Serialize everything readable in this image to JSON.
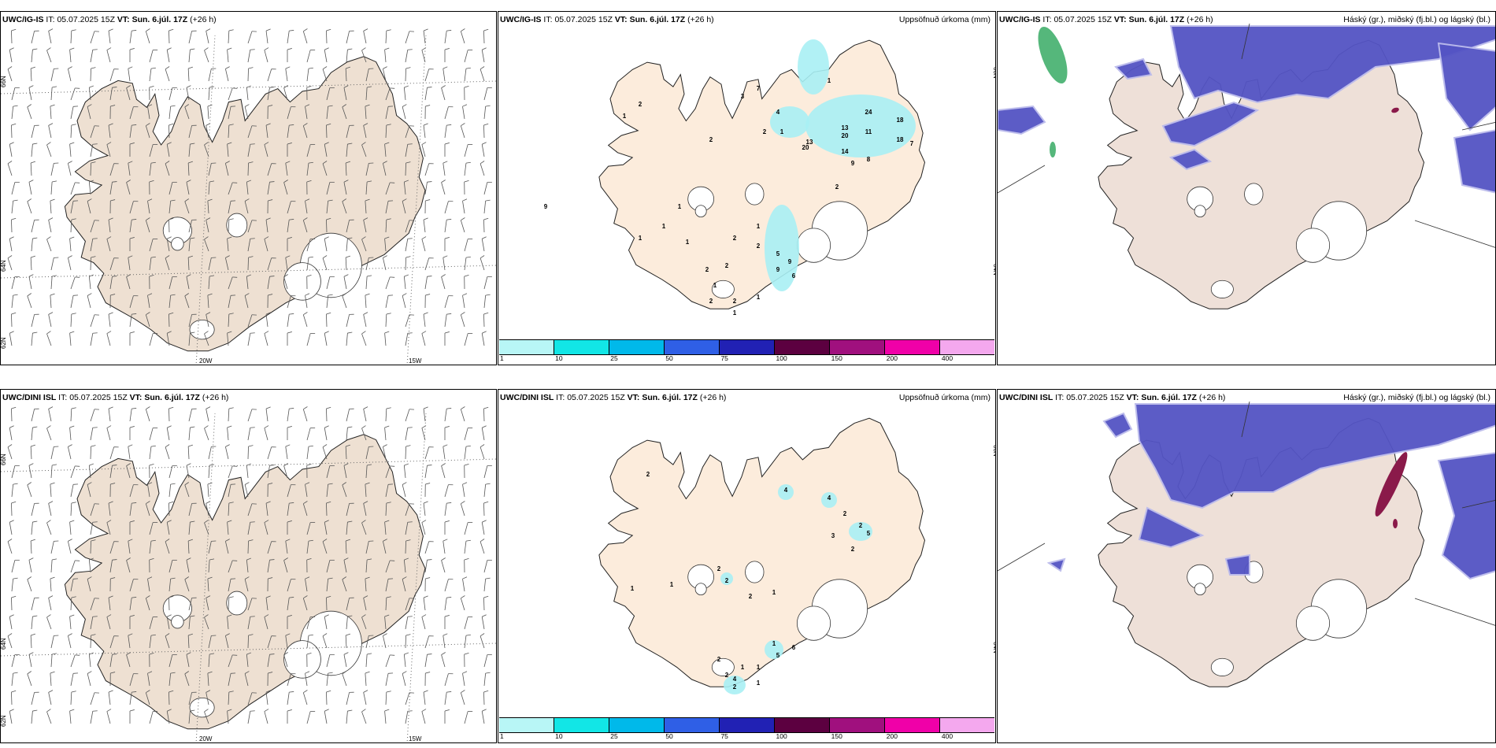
{
  "header": {
    "it_label": "IT:",
    "it_value": "05.07.2025 15Z",
    "vt_label": "VT: Sun. 6.júl. 17Z",
    "lead": "(+26 h)"
  },
  "rows": [
    {
      "model": "UWC/IG-IS"
    },
    {
      "model": "UWC/DINI ISL"
    }
  ],
  "panels": {
    "precip_title": "Uppsöfnuð úrkoma (mm)",
    "cloud_title": "Háský (gr.), miðský (fj.bl.) og lágský (bl.)"
  },
  "axis_labels": {
    "lat_66": "66N",
    "lat_64": "64N",
    "lat_62": "62N",
    "lon_20w": "20W",
    "lon_15w": "15W"
  },
  "colorbar": {
    "ticks": [
      "1",
      "10",
      "25",
      "50",
      "75",
      "100",
      "150",
      "200",
      "400"
    ],
    "colors": [
      "#b8f6f6",
      "#12e6e6",
      "#00b9ea",
      "#2f5fe6",
      "#2121b4",
      "#5c0040",
      "#a0107e",
      "#f000a8",
      "#f4a8ee"
    ]
  },
  "precip_values": {
    "top": [
      "1",
      "2",
      "2",
      "3",
      "7",
      "1",
      "2",
      "4",
      "24",
      "18",
      "1",
      "13",
      "11",
      "13",
      "20",
      "18",
      "7",
      "20",
      "14",
      "9",
      "8",
      "2",
      "9",
      "1",
      "1",
      "1",
      "1",
      "2",
      "2",
      "1",
      "2",
      "2",
      "1",
      "5",
      "9",
      "9",
      "6",
      "2",
      "2",
      "1",
      "1"
    ],
    "bottom": [
      "4",
      "4",
      "2",
      "2",
      "2",
      "5",
      "3",
      "2",
      "2",
      "2",
      "1",
      "1",
      "1",
      "2",
      "1",
      "5",
      "2",
      "1",
      "1",
      "6",
      "2",
      "4",
      "2",
      "1"
    ]
  },
  "colors": {
    "land_wind": "#eee0d2",
    "land_precip": "#fcecdc",
    "land_cloud": "#eee0d8",
    "precip_shade": "#a8f0f4",
    "low_cloud": "#5454c4",
    "mid_cloud": "#bbbbec",
    "high_cloud": "#2aa55a"
  }
}
